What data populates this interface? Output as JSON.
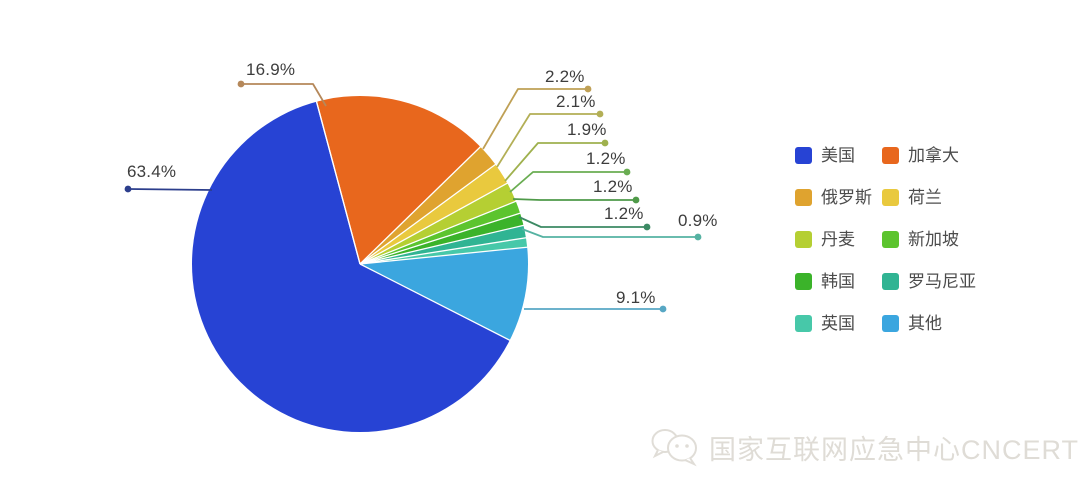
{
  "chart_data": {
    "type": "pie",
    "title": "",
    "unit": "%",
    "slices": [
      {
        "id": "usa",
        "name": "美国",
        "label": "63.4%",
        "value": 63.4,
        "color": "#2743d4",
        "line_color": "#2c3e8c"
      },
      {
        "id": "canada",
        "name": "加拿大",
        "label": "16.9%",
        "value": 16.9,
        "color": "#e8671d",
        "line_color": "#b5885a"
      },
      {
        "id": "russia",
        "name": "俄罗斯",
        "label": "2.2%",
        "value": 2.2,
        "color": "#dfa32f",
        "line_color": "#bfa055"
      },
      {
        "id": "netherlands",
        "name": "荷兰",
        "label": "2.1%",
        "value": 2.1,
        "color": "#e9c93e",
        "line_color": "#b3af56"
      },
      {
        "id": "denmark",
        "name": "丹麦",
        "label": "1.9%",
        "value": 1.9,
        "color": "#b5cf33",
        "line_color": "#9fb14e"
      },
      {
        "id": "singapore",
        "name": "新加坡",
        "label": "1.2%",
        "value": 1.2,
        "color": "#5cc42e",
        "line_color": "#6aad52"
      },
      {
        "id": "korea",
        "name": "韩国",
        "label": "1.2%",
        "value": 1.2,
        "color": "#3bb32a",
        "line_color": "#4f9a49"
      },
      {
        "id": "romania",
        "name": "罗马尼亚",
        "label": "1.2%",
        "value": 1.2,
        "color": "#30b493",
        "line_color": "#3c8a64"
      },
      {
        "id": "uk",
        "name": "英国",
        "label": "0.9%",
        "value": 0.9,
        "color": "#47c8a9",
        "line_color": "#55b2a2"
      },
      {
        "id": "other",
        "name": "其他",
        "label": "9.1%",
        "value": 9.1,
        "color": "#3ba6df",
        "line_color": "#57a7c4"
      }
    ],
    "draw_order": [
      "canada",
      "russia",
      "netherlands",
      "denmark",
      "singapore",
      "korea",
      "romania",
      "uk",
      "other",
      "usa"
    ],
    "start_angle_deg": -15,
    "legend_position": "right",
    "legend_columns": 2,
    "grid": false
  },
  "watermark": {
    "text": "国家互联网应急中心CNCERT"
  }
}
